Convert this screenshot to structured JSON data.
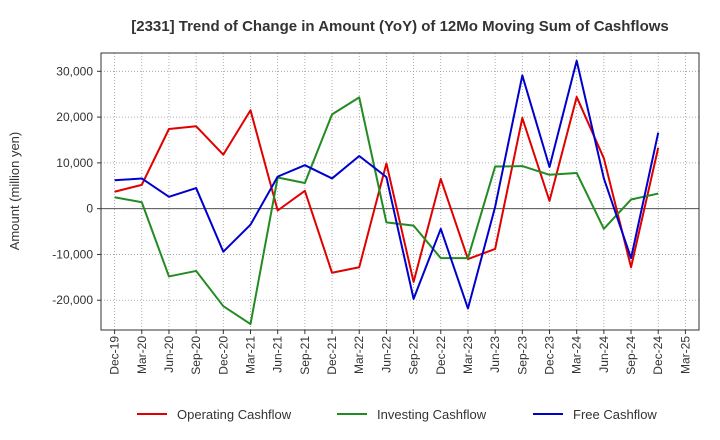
{
  "chart_data": {
    "type": "line",
    "title": "[2331]  Trend of Change in Amount (YoY) of 12Mo Moving Sum of Cashflows",
    "xlabel": "",
    "ylabel": "Amount (million yen)",
    "ylim": [
      -26500,
      34000
    ],
    "yticks": [
      30000,
      20000,
      10000,
      0,
      -10000,
      -20000
    ],
    "ytick_labels": [
      "30,000",
      "20,000",
      "10,000",
      "0",
      "-10,000",
      "-20,000"
    ],
    "grid": true,
    "legend_position": "bottom",
    "categories": [
      "Dec-19",
      "Mar-20",
      "Jun-20",
      "Sep-20",
      "Dec-20",
      "Mar-21",
      "Jun-21",
      "Sep-21",
      "Dec-21",
      "Mar-22",
      "Jun-22",
      "Sep-22",
      "Dec-22",
      "Mar-23",
      "Jun-23",
      "Sep-23",
      "Dec-23",
      "Mar-24",
      "Jun-24",
      "Sep-24",
      "Dec-24",
      "Mar-25"
    ],
    "series": [
      {
        "name": "Operating Cashflow",
        "color": "#e00000",
        "values": [
          3700,
          5200,
          17400,
          18000,
          11800,
          21500,
          -400,
          3900,
          -14000,
          -12800,
          9900,
          -16000,
          6500,
          -11000,
          -8800,
          19800,
          1700,
          24400,
          11000,
          -12800,
          13300,
          null
        ]
      },
      {
        "name": "Investing Cashflow",
        "color": "#228b22",
        "values": [
          2500,
          1400,
          -14800,
          -13600,
          -21300,
          -25200,
          6800,
          5600,
          20600,
          24300,
          -3000,
          -3700,
          -10800,
          -10800,
          9200,
          9300,
          7400,
          7800,
          -4400,
          2000,
          3300,
          null
        ]
      },
      {
        "name": "Free Cashflow",
        "color": "#0000cc",
        "values": [
          6200,
          6600,
          2600,
          4500,
          -9400,
          -3500,
          7000,
          9500,
          6600,
          11500,
          6900,
          -19700,
          -4400,
          -21800,
          400,
          29100,
          9100,
          32300,
          6600,
          -10800,
          16600,
          null
        ]
      }
    ]
  }
}
